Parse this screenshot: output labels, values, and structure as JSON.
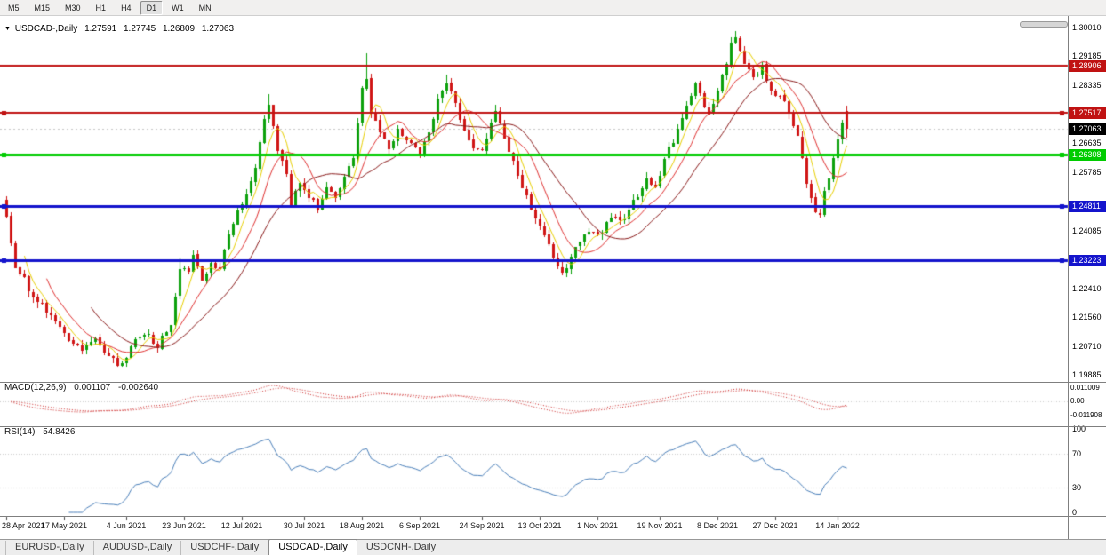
{
  "toolbar": {
    "periods": [
      "M5",
      "M15",
      "M30",
      "H1",
      "H4",
      "D1",
      "W1",
      "MN"
    ],
    "active": "D1"
  },
  "title": {
    "dropdown_icon": "▼",
    "symbol": "USDCAD-,Daily",
    "open": "1.27591",
    "high": "1.27745",
    "low": "1.26809",
    "close": "1.27063"
  },
  "price_axis": {
    "ticks": [
      "1.30010",
      "1.29185",
      "1.28335",
      "1.26635",
      "1.25785",
      "1.24085",
      "1.22410",
      "1.21560",
      "1.20710",
      "1.19885"
    ]
  },
  "levels": [
    {
      "label": "1.28906",
      "value": 1.28906,
      "color": "#c01212",
      "lw": 2,
      "handles": false
    },
    {
      "label": "1.27517",
      "value": 1.27517,
      "color": "#c01212",
      "lw": 2,
      "handles": true
    },
    {
      "label": "1.26308",
      "value": 1.26308,
      "color": "#00cc00",
      "lw": 3,
      "handles": true
    },
    {
      "label": "1.24811",
      "value": 1.24811,
      "color": "#1414cc",
      "lw": 3,
      "handles": true
    },
    {
      "label": "1.23223",
      "value": 1.23223,
      "color": "#1414cc",
      "lw": 3,
      "handles": true
    }
  ],
  "current_price": {
    "label": "1.27063",
    "value": 1.27063,
    "color": "#000000"
  },
  "macd": {
    "name": "MACD(12,26,9)",
    "main_value": "0.001107",
    "signal_value": "-0.002640",
    "color": "#cc2222",
    "axis": [
      "0.011009",
      "0.00",
      "-0.011908"
    ]
  },
  "rsi": {
    "name": "RSI(14)",
    "value": "54.8426",
    "color": "#4a7fba",
    "levels": [
      70,
      30
    ],
    "axis": [
      "100",
      "70",
      "30",
      "0"
    ]
  },
  "time_axis": {
    "labels": [
      {
        "text": "28 Apr 2021",
        "index": 0
      },
      {
        "text": "17 May 2021",
        "index": 13
      },
      {
        "text": "4 Jun 2021",
        "index": 27
      },
      {
        "text": "23 Jun 2021",
        "index": 40
      },
      {
        "text": "12 Jul 2021",
        "index": 53
      },
      {
        "text": "30 Jul 2021",
        "index": 67
      },
      {
        "text": "18 Aug 2021",
        "index": 80
      },
      {
        "text": "6 Sep 2021",
        "index": 93
      },
      {
        "text": "24 Sep 2021",
        "index": 107
      },
      {
        "text": "13 Oct 2021",
        "index": 120
      },
      {
        "text": "1 Nov 2021",
        "index": 133
      },
      {
        "text": "19 Nov 2021",
        "index": 147
      },
      {
        "text": "8 Dec 2021",
        "index": 160
      },
      {
        "text": "27 Dec 2021",
        "index": 173
      },
      {
        "text": "14 Jan 2022",
        "index": 187
      }
    ]
  },
  "tabs": [
    {
      "label": "EURUSD-,Daily",
      "active": false
    },
    {
      "label": "AUDUSD-,Daily",
      "active": false
    },
    {
      "label": "USDCHF-,Daily",
      "active": false
    },
    {
      "label": "USDCAD-,Daily",
      "active": true
    },
    {
      "label": "USDCNH-,Daily",
      "active": false
    }
  ],
  "chart_data": {
    "type": "candlestick",
    "symbol": "USDCAD-,Daily",
    "bars": 190,
    "first_open": 1.25,
    "up_color": "#0ca10c",
    "down_color": "#d01616",
    "ma": [
      {
        "period": 5,
        "color": "#e8cf00"
      },
      {
        "period": 10,
        "color": "#e03030"
      },
      {
        "period": 20,
        "color": "#8a1a1a"
      }
    ],
    "price_anchors": [
      [
        0,
        1.245
      ],
      [
        2,
        1.231
      ],
      [
        5,
        1.224
      ],
      [
        9,
        1.2175
      ],
      [
        13,
        1.2105
      ],
      [
        17,
        1.2065
      ],
      [
        20,
        1.2095
      ],
      [
        24,
        1.203
      ],
      [
        26,
        1.2015
      ],
      [
        28,
        1.208
      ],
      [
        31,
        1.2115
      ],
      [
        34,
        1.207
      ],
      [
        37,
        1.214
      ],
      [
        39,
        1.23
      ],
      [
        41,
        1.229
      ],
      [
        42,
        1.2335
      ],
      [
        44,
        1.227
      ],
      [
        46,
        1.231
      ],
      [
        48,
        1.229
      ],
      [
        50,
        1.24
      ],
      [
        52,
        1.246
      ],
      [
        54,
        1.252
      ],
      [
        56,
        1.259
      ],
      [
        58,
        1.274
      ],
      [
        59,
        1.277
      ],
      [
        61,
        1.265
      ],
      [
        63,
        1.2565
      ],
      [
        64,
        1.249
      ],
      [
        66,
        1.2545
      ],
      [
        67,
        1.253
      ],
      [
        70,
        1.247
      ],
      [
        72,
        1.2545
      ],
      [
        74,
        1.25
      ],
      [
        76,
        1.256
      ],
      [
        78,
        1.262
      ],
      [
        80,
        1.283
      ],
      [
        81,
        1.2845
      ],
      [
        82,
        1.275
      ],
      [
        84,
        1.269
      ],
      [
        86,
        1.265
      ],
      [
        88,
        1.27
      ],
      [
        90,
        1.268
      ],
      [
        93,
        1.264
      ],
      [
        95,
        1.269
      ],
      [
        97,
        1.279
      ],
      [
        99,
        1.2845
      ],
      [
        101,
        1.278
      ],
      [
        103,
        1.27
      ],
      [
        105,
        1.2655
      ],
      [
        107,
        1.265
      ],
      [
        110,
        1.276
      ],
      [
        113,
        1.264
      ],
      [
        116,
        1.254
      ],
      [
        119,
        1.245
      ],
      [
        121,
        1.239
      ],
      [
        124,
        1.23
      ],
      [
        126,
        1.2292
      ],
      [
        128,
        1.236
      ],
      [
        131,
        1.241
      ],
      [
        133,
        1.239
      ],
      [
        136,
        1.245
      ],
      [
        139,
        1.244
      ],
      [
        141,
        1.2495
      ],
      [
        144,
        1.2555
      ],
      [
        146,
        1.253
      ],
      [
        148,
        1.2615
      ],
      [
        151,
        1.27
      ],
      [
        153,
        1.278
      ],
      [
        155,
        1.284
      ],
      [
        156,
        1.2805
      ],
      [
        158,
        1.2745
      ],
      [
        160,
        1.282
      ],
      [
        162,
        1.2905
      ],
      [
        163,
        1.2955
      ],
      [
        164,
        1.297
      ],
      [
        166,
        1.29
      ],
      [
        168,
        1.286
      ],
      [
        170,
        1.2885
      ],
      [
        172,
        1.282
      ],
      [
        174,
        1.28
      ],
      [
        176,
        1.2755
      ],
      [
        178,
        1.269
      ],
      [
        179,
        1.262
      ],
      [
        180,
        1.255
      ],
      [
        181,
        1.25
      ],
      [
        182,
        1.247
      ],
      [
        183,
        1.2458
      ],
      [
        184,
        1.252
      ],
      [
        185,
        1.256
      ],
      [
        186,
        1.262
      ],
      [
        187,
        1.267
      ],
      [
        188,
        1.273
      ],
      [
        189,
        1.2759
      ]
    ],
    "spikes": [
      {
        "i": 26,
        "low": 1.201
      },
      {
        "i": 39,
        "high": 1.233
      },
      {
        "i": 59,
        "high": 1.2807
      },
      {
        "i": 81,
        "high": 1.2926
      },
      {
        "i": 99,
        "high": 1.2865
      },
      {
        "i": 110,
        "high": 1.2775
      },
      {
        "i": 125,
        "low": 1.2277
      },
      {
        "i": 164,
        "high": 1.2992
      },
      {
        "i": 183,
        "low": 1.2448
      }
    ],
    "last_bar": {
      "open": 1.27591,
      "high": 1.27745,
      "low": 1.26809,
      "close": 1.27063
    },
    "levels": [
      1.28906,
      1.27517,
      1.26308,
      1.24811,
      1.23223
    ],
    "indicators": {
      "macd": "MACD(12,26,9)",
      "rsi": "RSI(14)"
    }
  }
}
